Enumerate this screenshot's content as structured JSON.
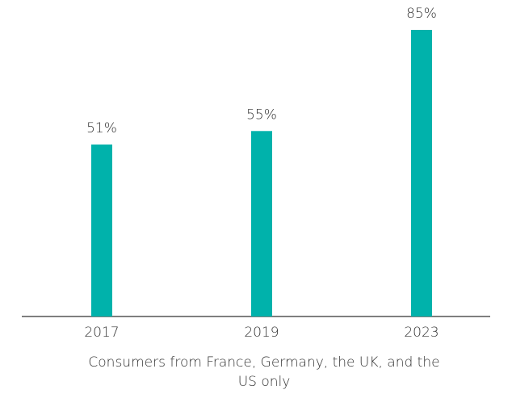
{
  "chart_data": {
    "type": "bar",
    "categories": [
      "2017",
      "2019",
      "2023"
    ],
    "values": [
      51,
      55,
      85
    ],
    "value_labels": [
      "51%",
      "55%",
      "85%"
    ],
    "color": "#00b2ab",
    "ylim": [
      0,
      85
    ],
    "x_label": "Consumers from France, Germany, the UK, and the US only"
  }
}
